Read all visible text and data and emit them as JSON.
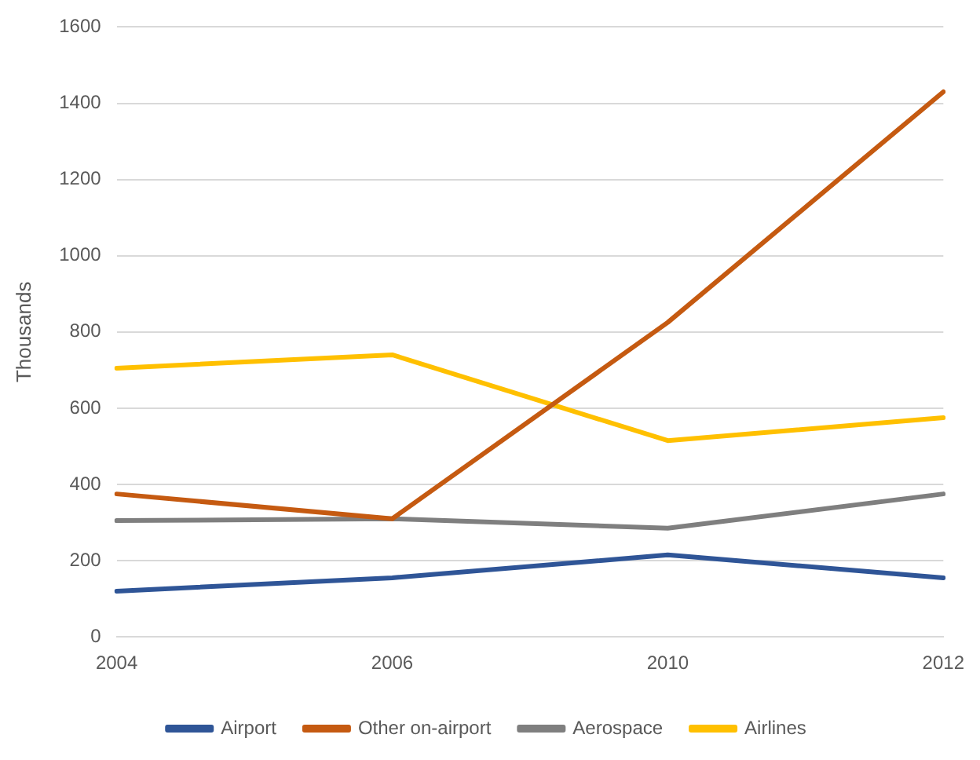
{
  "chart_data": {
    "type": "line",
    "ylabel": "Thousands",
    "categories": [
      "2004",
      "2006",
      "2010",
      "2012"
    ],
    "series": [
      {
        "name": "Airport",
        "color": "#2f5597",
        "values": [
          120,
          155,
          215,
          155
        ]
      },
      {
        "name": "Other on-airport",
        "color": "#c55a11",
        "values": [
          375,
          310,
          825,
          1430
        ]
      },
      {
        "name": "Aerospace",
        "color": "#7f7f7f",
        "values": [
          305,
          310,
          285,
          375
        ]
      },
      {
        "name": "Airlines",
        "color": "#ffc000",
        "values": [
          705,
          740,
          515,
          575
        ]
      }
    ],
    "ylim": [
      0,
      1600
    ],
    "yticks": [
      0,
      200,
      400,
      600,
      800,
      1000,
      1200,
      1400,
      1600
    ],
    "grid": "y",
    "legend": "bottom",
    "marker": "none",
    "line_style": "solid"
  }
}
